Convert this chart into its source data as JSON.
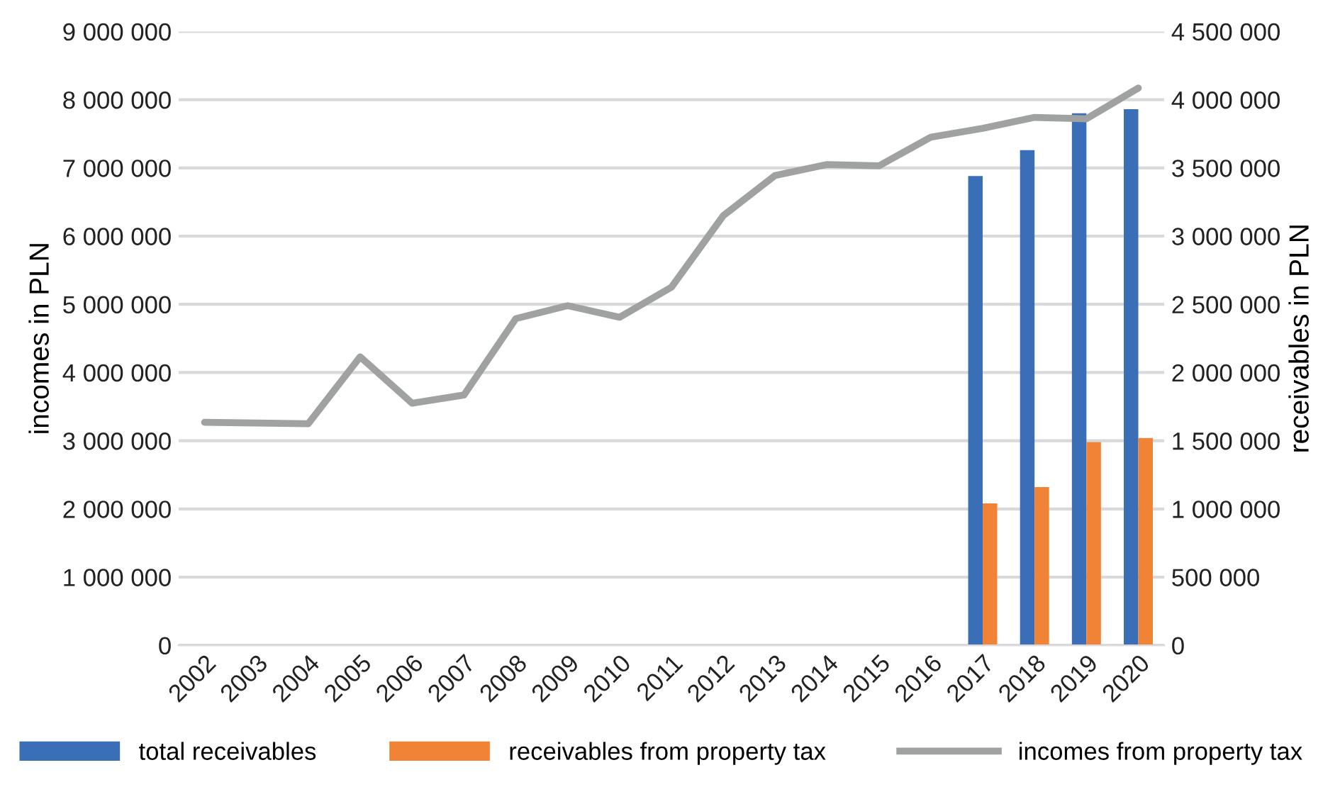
{
  "chart_data": {
    "type": "bar",
    "ylabel": "incomes in PLN",
    "y2label": "receivables in PLN",
    "categories": [
      "2002",
      "2003",
      "2004",
      "2005",
      "2006",
      "2007",
      "2008",
      "2009",
      "2010",
      "2011",
      "2012",
      "2013",
      "2014",
      "2015",
      "2016",
      "2017",
      "2018",
      "2019",
      "2020"
    ],
    "series": [
      {
        "name": "total receivables",
        "axis": "y2",
        "color": "#3a6fb8",
        "values": [
          null,
          null,
          null,
          null,
          null,
          null,
          null,
          null,
          null,
          null,
          null,
          null,
          null,
          null,
          null,
          3440000,
          3630000,
          3900000,
          3930000
        ]
      },
      {
        "name": "receivables from property tax",
        "axis": "y2",
        "color": "#f08335",
        "values": [
          null,
          null,
          null,
          null,
          null,
          null,
          null,
          null,
          null,
          null,
          null,
          null,
          null,
          null,
          null,
          1040000,
          1160000,
          1490000,
          1520000
        ]
      },
      {
        "name": "incomes from property tax",
        "type": "line",
        "axis": "y",
        "color": "#a0a2a2",
        "values": [
          3270000,
          3260000,
          3250000,
          4230000,
          3550000,
          3670000,
          4790000,
          4980000,
          4810000,
          5250000,
          6300000,
          6890000,
          7050000,
          7030000,
          7450000,
          7580000,
          7740000,
          7720000,
          8170000
        ]
      }
    ],
    "ylim": [
      0,
      9000000
    ],
    "yticks": [
      {
        "value": 0,
        "label": "0"
      },
      {
        "value": 1000000,
        "label": "1 000 000"
      },
      {
        "value": 2000000,
        "label": "2 000 000"
      },
      {
        "value": 3000000,
        "label": "3 000 000"
      },
      {
        "value": 4000000,
        "label": "4 000 000"
      },
      {
        "value": 5000000,
        "label": "5 000 000"
      },
      {
        "value": 6000000,
        "label": "6 000 000"
      },
      {
        "value": 7000000,
        "label": "7 000 000"
      },
      {
        "value": 8000000,
        "label": "8 000 000"
      },
      {
        "value": 9000000,
        "label": "9 000 000"
      }
    ],
    "y2lim": [
      0,
      4500000
    ],
    "y2ticks": [
      {
        "value": 0,
        "label": "0"
      },
      {
        "value": 500000,
        "label": "500 000"
      },
      {
        "value": 1000000,
        "label": "1 000 000"
      },
      {
        "value": 1500000,
        "label": "1 500 000"
      },
      {
        "value": 2000000,
        "label": "2 000 000"
      },
      {
        "value": 2500000,
        "label": "2 500 000"
      },
      {
        "value": 3000000,
        "label": "3 000 000"
      },
      {
        "value": 3500000,
        "label": "3 500 000"
      },
      {
        "value": 4000000,
        "label": "4 000 000"
      },
      {
        "value": 4500000,
        "label": "4 500 000"
      }
    ],
    "grid": "y",
    "legend": "bottom",
    "marker": "none",
    "line_style": "solid"
  }
}
